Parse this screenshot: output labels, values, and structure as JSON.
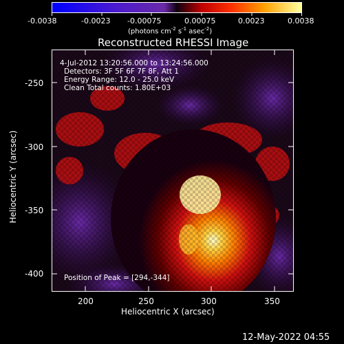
{
  "colorbar": {
    "ticks": [
      "-0.0038",
      "-0.0023",
      "-0.00075",
      "0.00075",
      "0.0023",
      "0.0038"
    ],
    "units_prefix": "(photons cm",
    "units_sup1": "-2",
    "units_mid1": " s",
    "units_sup2": "-1",
    "units_mid2": " asec",
    "units_sup3": "-2",
    "units_suffix": ")"
  },
  "plot": {
    "title": "Reconstructed RHESSI Image",
    "xlabel": "Heliocentric X (arcsec)",
    "ylabel": "Heliocentric Y (arcsec)",
    "xticks": [
      "200",
      "250",
      "300",
      "350"
    ],
    "yticks": [
      "-250",
      "-300",
      "-350",
      "-400"
    ],
    "info": {
      "line1": "4-Jul-2012 13:20:56.000 to 13:24:56.000",
      "line2": "Detectors: 3F 5F 6F 7F 8F, Att 1",
      "line3": "Energy Range: 12.0 - 25.0 keV",
      "line4": "Clean    Total counts: 1.80E+03"
    },
    "peak": "Position of Peak = [294,-344]"
  },
  "footer": {
    "timestamp": "12-May-2022 04:55"
  },
  "colors": {
    "background": "#000000",
    "neg_low": "#0000ff",
    "neg_high": "#6a2aa8",
    "pos_mid": "#e01010",
    "pos_high": "#ffb000",
    "peak": "#ffffe0"
  }
}
